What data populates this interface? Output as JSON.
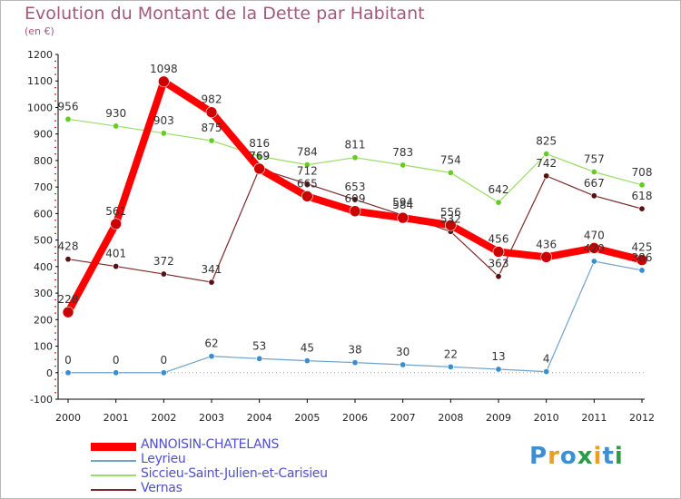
{
  "title": "Evolution du Montant de la Dette par Habitant",
  "subtitle": "(en €)",
  "logo": {
    "text": "Proxiti",
    "colors": [
      "#3a8fd6",
      "#e8a020",
      "#3a8fd6",
      "#2d9c46",
      "#e8a020",
      "#3a8fd6",
      "#2d9c46"
    ]
  },
  "chart_data": {
    "type": "line",
    "title": "Evolution du Montant de la Dette par Habitant",
    "ylabel": "(en €)",
    "xlabel": "",
    "x": [
      "2000",
      "2001",
      "2002",
      "2003",
      "2004",
      "2005",
      "2006",
      "2007",
      "2008",
      "2009",
      "2010",
      "2011",
      "2012"
    ],
    "yticks": [
      "-100",
      "0",
      "100",
      "200",
      "300",
      "400",
      "500",
      "600",
      "700",
      "800",
      "900",
      "1000",
      "1100",
      "1200"
    ],
    "ylim": [
      -100,
      1200
    ],
    "grid": false,
    "legend_position": "bottom-left",
    "series": [
      {
        "name": "ANNOISIN-CHATELANS",
        "color": "#ff0000",
        "values": [
          228,
          561,
          1098,
          982,
          769,
          665,
          609,
          584,
          556,
          456,
          436,
          470,
          425
        ],
        "labels": [
          "228",
          "561",
          "1098",
          "982",
          "769",
          "665",
          "609",
          "584",
          "556",
          "456",
          "436",
          "470",
          "425"
        ]
      },
      {
        "name": "Leyrieu",
        "color": "#6fa3cc",
        "values": [
          0,
          0,
          0,
          62,
          53,
          45,
          38,
          30,
          22,
          13,
          4,
          420,
          386
        ],
        "labels": [
          "0",
          "0",
          "0",
          "62",
          "53",
          "45",
          "38",
          "30",
          "22",
          "13",
          "4",
          "420",
          "386"
        ]
      },
      {
        "name": "Siccieu-Saint-Julien-et-Carisieu",
        "color": "#99dd66",
        "values": [
          956,
          930,
          903,
          875,
          816,
          784,
          811,
          783,
          754,
          642,
          825,
          757,
          708
        ],
        "labels": [
          "956",
          "930",
          "903",
          "875",
          "816",
          "784",
          "811",
          "783",
          "754",
          "642",
          "825",
          "757",
          "708"
        ]
      },
      {
        "name": "Vernas",
        "color": "#7a2a2a",
        "values": [
          428,
          401,
          372,
          341,
          769,
          712,
          653,
          594,
          532,
          363,
          742,
          667,
          618
        ],
        "labels": [
          "428",
          "401",
          "372",
          "341",
          "769",
          "712",
          "653",
          "594",
          "532",
          "363",
          "742",
          "667",
          "618"
        ]
      }
    ]
  }
}
